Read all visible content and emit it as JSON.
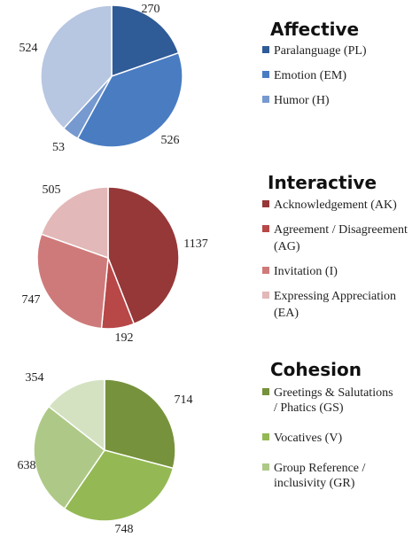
{
  "chart_data": [
    {
      "type": "pie",
      "title": "Affective",
      "series": [
        {
          "name": "Paralanguage (PL)",
          "values": [
            270
          ],
          "color": "#2f5b97"
        },
        {
          "name": "Emotion (EM)",
          "values": [
            526
          ],
          "color": "#4a7cc2"
        },
        {
          "name": "Humor (H)",
          "values": [
            53
          ],
          "color": "#7699cf"
        },
        {
          "name": "",
          "values": [
            524
          ],
          "color": "#b7c6e1"
        }
      ],
      "legend": [
        {
          "label": "Paralanguage (PL)",
          "color": "#2f5b97"
        },
        {
          "label": "Emotion (EM)",
          "color": "#4a7cc2"
        },
        {
          "label": "Humor (H)",
          "color": "#7699cf"
        }
      ],
      "legend_position": "right"
    },
    {
      "type": "pie",
      "title": "Interactive",
      "series": [
        {
          "name": "Acknowledgement (AK)",
          "values": [
            1137
          ],
          "color": "#963838"
        },
        {
          "name": "Agreement / Disagreement (AG)",
          "values": [
            192
          ],
          "color": "#b84747"
        },
        {
          "name": "Invitation (I)",
          "values": [
            747
          ],
          "color": "#cf7a7a"
        },
        {
          "name": "Expressing Appreciation (EA)",
          "values": [
            505
          ],
          "color": "#e3b8b8"
        }
      ],
      "legend": [
        {
          "label": "Acknowledgement (AK)",
          "color": "#963838"
        },
        {
          "label": "Agreement / Disagreement (AG)",
          "color": "#b84747"
        },
        {
          "label": "Invitation (I)",
          "color": "#cf7a7a"
        },
        {
          "label": "Expressing Appreciation (EA)",
          "color": "#e3b8b8"
        }
      ],
      "legend_position": "right"
    },
    {
      "type": "pie",
      "title": "Cohesion",
      "series": [
        {
          "name": "Greetings & Salutations / Phatics (GS)",
          "values": [
            714
          ],
          "color": "#76923c"
        },
        {
          "name": "Vocatives (V)",
          "values": [
            748
          ],
          "color": "#94b954"
        },
        {
          "name": "Group Reference / inclusivity (GR)",
          "values": [
            638
          ],
          "color": "#aec987"
        },
        {
          "name": "",
          "values": [
            354
          ],
          "color": "#d4e2c2"
        }
      ],
      "legend": [
        {
          "label": "Greetings & Salutations  / Phatics (GS)",
          "color": "#76923c"
        },
        {
          "label": "Vocatives (V)",
          "color": "#94b954"
        },
        {
          "label": "Group Reference / inclusivity (GR)",
          "color": "#aec987"
        }
      ],
      "legend_position": "right"
    }
  ]
}
